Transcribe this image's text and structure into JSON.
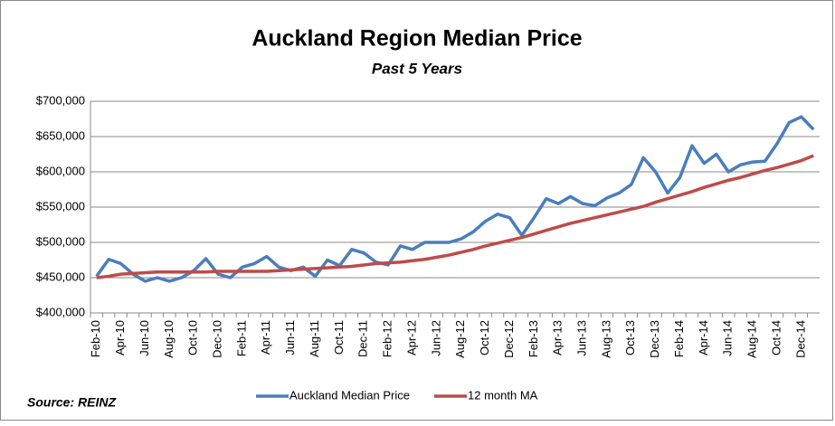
{
  "chart_data": {
    "type": "line",
    "title": "Auckland Region Median Price",
    "subtitle": "Past 5 Years",
    "source": "Source: REINZ",
    "categories": [
      "Feb-10",
      null,
      "Apr-10",
      null,
      "Jun-10",
      null,
      "Aug-10",
      null,
      "Oct-10",
      null,
      "Dec-10",
      null,
      "Feb-11",
      null,
      "Apr-11",
      null,
      "Jun-11",
      null,
      "Aug-11",
      null,
      "Oct-11",
      null,
      "Dec-11",
      null,
      "Feb-12",
      null,
      "Apr-12",
      null,
      "Jun-12",
      null,
      "Aug-12",
      null,
      "Oct-12",
      null,
      "Dec-12",
      null,
      "Feb-13",
      null,
      "Apr-13",
      null,
      "Jun-13",
      null,
      "Aug-13",
      null,
      "Oct-13",
      null,
      "Dec-13",
      null,
      "Feb-14",
      null,
      "Apr-14",
      null,
      "Jun-14",
      null,
      "Aug-14",
      null,
      "Oct-14",
      null,
      "Dec-14",
      null
    ],
    "series": [
      {
        "name": "Auckland Median Price",
        "color": "#4a7ebb",
        "values": [
          452000,
          476000,
          470000,
          455000,
          445000,
          450000,
          445000,
          450000,
          460000,
          477000,
          455000,
          450000,
          465000,
          470000,
          480000,
          465000,
          460000,
          465000,
          452000,
          475000,
          467000,
          490000,
          485000,
          472000,
          468000,
          495000,
          490000,
          500000,
          500000,
          500000,
          505000,
          515000,
          530000,
          540000,
          535000,
          510000,
          535000,
          562000,
          555000,
          565000,
          555000,
          552000,
          563000,
          570000,
          582000,
          620000,
          600000,
          570000,
          592000,
          637000,
          612000,
          625000,
          600000,
          610000,
          614000,
          615000,
          640000,
          670000,
          678000,
          660000
        ]
      },
      {
        "name": "12 month MA",
        "color": "#be4b48",
        "values": [
          450000,
          452000,
          455000,
          456000,
          457000,
          458000,
          458000,
          458000,
          458000,
          458000,
          459000,
          459000,
          459000,
          459000,
          459000,
          460000,
          461000,
          462000,
          463000,
          464000,
          465000,
          466000,
          468000,
          470000,
          471000,
          472000,
          474000,
          476000,
          479000,
          482000,
          486000,
          490000,
          495000,
          499000,
          503000,
          507000,
          512000,
          517000,
          522000,
          527000,
          531000,
          535000,
          539000,
          543000,
          547000,
          551000,
          557000,
          562000,
          567000,
          572000,
          578000,
          583000,
          588000,
          592000,
          597000,
          602000,
          606000,
          611000,
          616000,
          623000
        ]
      }
    ],
    "ylim": [
      400000,
      700000
    ],
    "yticks": [
      {
        "value": 400000,
        "label": "$400,000"
      },
      {
        "value": 450000,
        "label": "$450,000"
      },
      {
        "value": 500000,
        "label": "$500,000"
      },
      {
        "value": 550000,
        "label": "$550,000"
      },
      {
        "value": 600000,
        "label": "$600,000"
      },
      {
        "value": 650000,
        "label": "$650,000"
      },
      {
        "value": 700000,
        "label": "$700,000"
      }
    ],
    "grid": true
  }
}
